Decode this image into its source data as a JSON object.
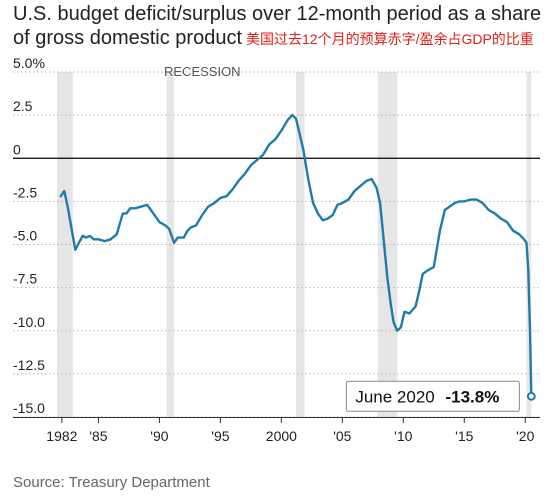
{
  "title_line1": "U.S. budget deficit/surplus over 12-month period as a share",
  "title_line2": "of gross domestic product",
  "title_cn": "美国过去12个月的预算赤字/盈余占GDP的比重",
  "source": "Source: Treasury Department",
  "colors": {
    "line": "#1f7ba8",
    "recession": "#e6e6e6",
    "zero": "#000000",
    "grid": "#b5b5b5"
  },
  "chart_data": {
    "type": "line",
    "ylim": [
      -15,
      5
    ],
    "xlim": [
      1981.6,
      2020.8
    ],
    "yticks": [
      5,
      2.5,
      0,
      -2.5,
      -5,
      -7.5,
      -10,
      -12.5,
      -15
    ],
    "ytick_labels": [
      "5.0%",
      "2.5",
      "0",
      "-2.5",
      "-5.0",
      "-7.5",
      "-10.0",
      "-12.5",
      "-15.0"
    ],
    "xticks": [
      1982,
      1985,
      1990,
      1995,
      2000,
      2005,
      2010,
      2015,
      2020
    ],
    "xtick_labels": [
      "1982",
      "'85",
      "'90",
      "'95",
      "2000",
      "'05",
      "'10",
      "'15",
      "'20"
    ],
    "recession_label": "RECESSION",
    "recessions": [
      [
        1981.6,
        1982.9
      ],
      [
        1990.6,
        1991.2
      ],
      [
        2001.2,
        2001.9
      ],
      [
        2007.9,
        2009.5
      ],
      [
        2020.1,
        2020.5
      ]
    ],
    "annotation": {
      "label": "June 2020",
      "value_label": "-13.8%",
      "x": 2020.5,
      "y": -13.8
    },
    "series": [
      {
        "x": [
          1981.9,
          1982.2,
          1982.5,
          1982.8,
          1983.1,
          1983.4,
          1983.7,
          1984.0,
          1984.3,
          1984.6,
          1985.0,
          1985.5,
          1986.0,
          1986.5,
          1987.0,
          1987.3,
          1987.6,
          1988.0,
          1988.5,
          1989.0,
          1989.5,
          1990.0,
          1990.5,
          1990.8,
          1991.2,
          1991.5,
          1992.0,
          1992.3,
          1992.6,
          1993.0,
          1993.5,
          1994.0,
          1994.5,
          1995.0,
          1995.5,
          1996.0,
          1996.5,
          1997.0,
          1997.5,
          1998.0,
          1998.5,
          1999.0,
          1999.5,
          2000.0,
          2000.5,
          2000.9,
          2001.2,
          2001.5,
          2001.8,
          2002.2,
          2002.6,
          2003.0,
          2003.4,
          2003.8,
          2004.2,
          2004.6,
          2005.0,
          2005.5,
          2006.0,
          2006.5,
          2007.0,
          2007.4,
          2007.8,
          2008.1,
          2008.4,
          2008.7,
          2009.0,
          2009.2,
          2009.5,
          2009.8,
          2010.1,
          2010.5,
          2011.0,
          2011.3,
          2011.6,
          2012.0,
          2012.5,
          2013.0,
          2013.4,
          2013.8,
          2014.2,
          2014.6,
          2015.0,
          2015.5,
          2016.0,
          2016.5,
          2017.0,
          2017.5,
          2018.0,
          2018.5,
          2019.0,
          2019.5,
          2019.9,
          2020.1,
          2020.25,
          2020.4,
          2020.5
        ],
        "y": [
          -2.2,
          -1.9,
          -2.9,
          -4.1,
          -5.3,
          -4.9,
          -4.5,
          -4.6,
          -4.5,
          -4.7,
          -4.7,
          -4.8,
          -4.7,
          -4.4,
          -3.2,
          -3.2,
          -2.9,
          -2.9,
          -2.8,
          -2.7,
          -3.2,
          -3.7,
          -3.9,
          -4.1,
          -4.9,
          -4.6,
          -4.6,
          -4.2,
          -4.0,
          -3.9,
          -3.3,
          -2.8,
          -2.6,
          -2.3,
          -2.2,
          -1.8,
          -1.3,
          -0.9,
          -0.4,
          -0.1,
          0.2,
          0.8,
          1.1,
          1.6,
          2.2,
          2.5,
          2.3,
          1.4,
          0.5,
          -1.2,
          -2.6,
          -3.2,
          -3.6,
          -3.5,
          -3.3,
          -2.7,
          -2.6,
          -2.4,
          -1.9,
          -1.6,
          -1.3,
          -1.2,
          -1.7,
          -2.6,
          -4.8,
          -7.0,
          -8.6,
          -9.5,
          -10.0,
          -9.8,
          -8.9,
          -9.0,
          -8.6,
          -7.7,
          -6.7,
          -6.5,
          -6.3,
          -4.2,
          -3.0,
          -2.8,
          -2.6,
          -2.5,
          -2.5,
          -2.4,
          -2.4,
          -2.6,
          -3.0,
          -3.2,
          -3.5,
          -3.7,
          -4.2,
          -4.4,
          -4.7,
          -4.9,
          -6.5,
          -10.2,
          -13.8
        ]
      }
    ]
  }
}
